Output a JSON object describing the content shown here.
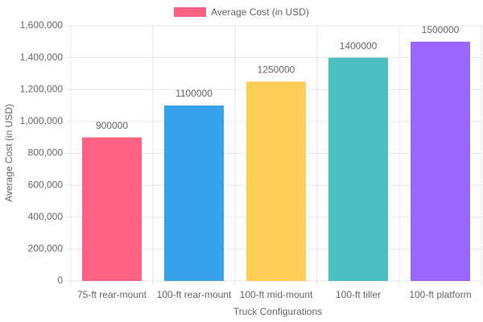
{
  "chart_data": {
    "type": "bar",
    "x_label": "Truck Configurations",
    "y_label": "Average Cost (in USD)",
    "categories": [
      "75-ft rear-mount",
      "100-ft rear-mount",
      "100-ft mid-mount",
      "100-ft tiller",
      "100-ft platform"
    ],
    "series": [
      {
        "name": "Average Cost (in USD)",
        "colors": [
          "#ff6384",
          "#36a2eb",
          "#ffce56",
          "#4bc0c0",
          "#9966ff"
        ],
        "values": [
          900000,
          1100000,
          1250000,
          1400000,
          1500000
        ]
      }
    ],
    "ylim": [
      0,
      1600000
    ],
    "yticks": [
      0,
      {
        "value": 200000,
        "label": "200,000"
      },
      {
        "value": 400000,
        "label": "400,000"
      },
      {
        "value": 600000,
        "label": "600,000"
      },
      {
        "value": 800000,
        "label": "800,000"
      },
      {
        "value": 1000000,
        "label": "1,000,000"
      },
      {
        "value": 1200000,
        "label": "1,200,000"
      },
      {
        "value": 1400000,
        "label": "1,400,000"
      },
      {
        "value": 1600000,
        "label": "1,600,000"
      }
    ],
    "grid": true
  }
}
